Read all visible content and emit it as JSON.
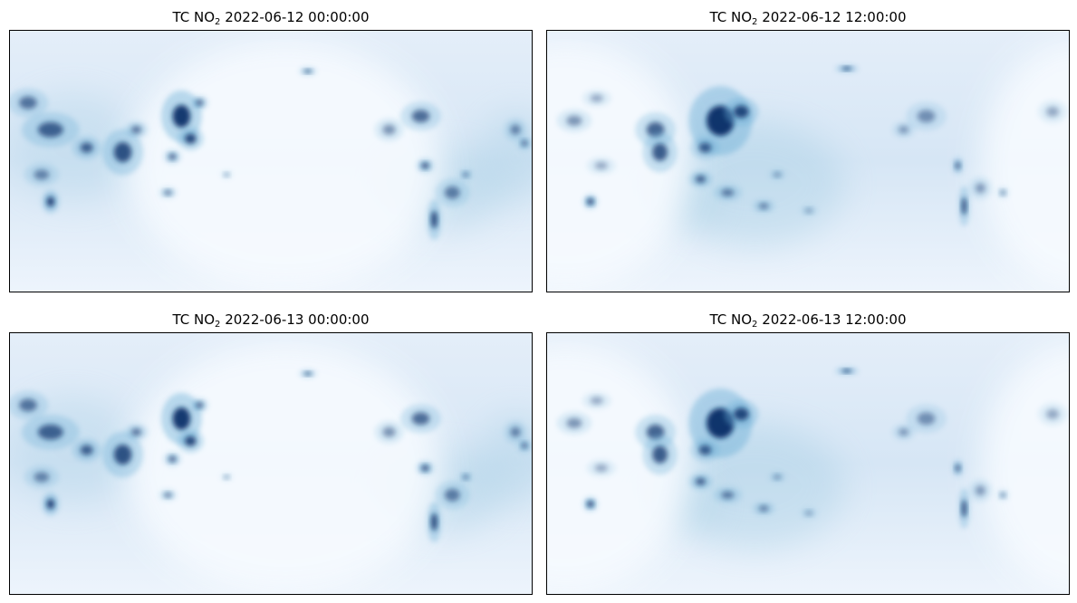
{
  "figure": {
    "colormap": "Blues",
    "colors": {
      "low": "#f7fbff",
      "mid": "#c6dbef",
      "high": "#08306b"
    },
    "panels": [
      {
        "title_prefix": "TC NO",
        "subscript": "2",
        "title_time": "2022-06-12 00:00:00",
        "day_side": "east"
      },
      {
        "title_prefix": "TC NO",
        "subscript": "2",
        "title_time": "2022-06-12 12:00:00",
        "day_side": "west"
      },
      {
        "title_prefix": "TC NO",
        "subscript": "2",
        "title_time": "2022-06-13 00:00:00",
        "day_side": "east"
      },
      {
        "title_prefix": "TC NO",
        "subscript": "2",
        "title_time": "2022-06-13 12:00:00",
        "day_side": "west"
      }
    ]
  }
}
